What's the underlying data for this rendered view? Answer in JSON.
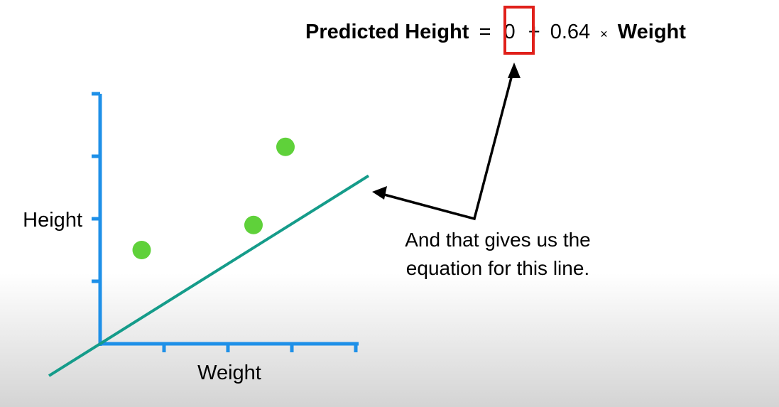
{
  "equation": {
    "lhs": "Predicted Height",
    "equals": "=",
    "intercept": "0",
    "plus": "+",
    "slope": "0.64",
    "times": "×",
    "variable": "Weight"
  },
  "annotation": {
    "line1": "And that gives us the",
    "line2": "equation for this line."
  },
  "colors": {
    "axis": "#1e90e8",
    "points": "#5fd13a",
    "line": "#159c8a",
    "highlight_box": "#e0201a",
    "arrow": "#000000"
  },
  "chart_data": {
    "type": "scatter",
    "xlabel": "Weight",
    "ylabel": "Height",
    "xlim": [
      0,
      4
    ],
    "ylim": [
      0,
      4
    ],
    "x_ticks": [
      1,
      2,
      3,
      4
    ],
    "y_ticks": [
      1,
      2,
      3,
      4
    ],
    "points": [
      {
        "x": 0.65,
        "y": 1.5
      },
      {
        "x": 2.4,
        "y": 1.9
      },
      {
        "x": 2.9,
        "y": 3.15
      }
    ],
    "fit_line": {
      "intercept": 0,
      "slope": 0.64,
      "x_range": [
        -0.8,
        4.2
      ]
    },
    "grid": false
  }
}
